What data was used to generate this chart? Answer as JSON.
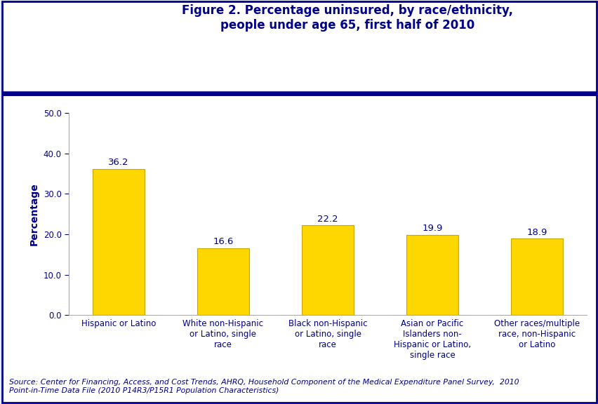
{
  "title": "Figure 2. Percentage uninsured, by race/ethnicity,\npeople under age 65, first half of 2010",
  "categories": [
    "Hispanic or Latino",
    "White non-Hispanic\nor Latino, single\nrace",
    "Black non-Hispanic\nor Latino, single\nrace",
    "Asian or Pacific\nIslanders non-\nHispanic or Latino,\nsingle race",
    "Other races/multiple\nrace, non-Hispanic\nor Latino"
  ],
  "values": [
    36.2,
    16.6,
    22.2,
    19.9,
    18.9
  ],
  "bar_color": "#FFD700",
  "bar_edge_color": "#C8A800",
  "ylabel": "Percentage",
  "ylim": [
    0,
    50
  ],
  "yticks": [
    0.0,
    10.0,
    20.0,
    30.0,
    40.0,
    50.0
  ],
  "value_color": "#00008B",
  "axis_label_color": "#00008B",
  "tick_label_color": "#00008B",
  "title_color": "#00008B",
  "background_color": "#FFFFFF",
  "outer_border_color": "#00008B",
  "plot_bg_color": "#FFFFFF",
  "source_text": "Source: Center for Financing, Access, and Cost Trends, AHRQ, Household Component of the Medical Expenditure Panel Survey,  2010\nPoint-in-Time Data File (2010 P14R3/P15R1 Population Characteristics)",
  "source_color": "#00008B",
  "header_line_color": "#00008B",
  "value_fontsize": 9.5,
  "ylabel_fontsize": 10,
  "tick_fontsize": 8.5,
  "title_fontsize": 12,
  "source_fontsize": 7.8,
  "header_bg_color": "#FFFFFF",
  "light_bg_color": "#E8EEF8"
}
